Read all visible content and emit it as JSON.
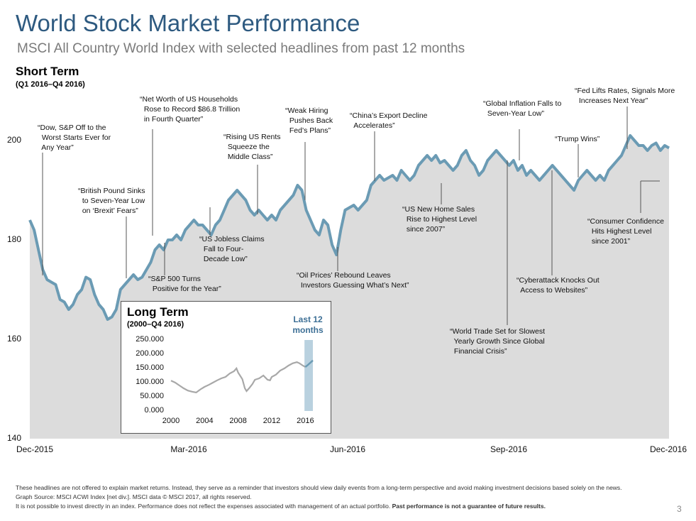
{
  "title": "World Stock Market Performance",
  "subtitle": "MSCI All Country World Index with selected headlines from past 12 months",
  "short_term": {
    "title": "Short Term",
    "period": "(Q1 2016–Q4 2016)"
  },
  "long_term": {
    "title": "Long Term",
    "period": "(2000–Q4 2016)",
    "highlight_label": [
      "Last 12",
      "months"
    ]
  },
  "colors": {
    "line": "#6b9bb4",
    "area": "#dcdcdc",
    "highlight": "#b9d1df",
    "long_line": "#a8a8a8",
    "title": "#2e5a80"
  },
  "footnotes": {
    "line1": "These headlines are not offered to explain market returns. Instead, they serve as a reminder that investors should view daily events from a long-term perspective and avoid making investment decisions based solely on the news.",
    "line2": "Graph Source: MSCI ACWI Index [net div.]. MSCI data © MSCI 2017, all rights reserved.",
    "line3a": "It is not possible to invest directly in an index. Performance does not reflect the expenses associated with management of an actual portfolio. ",
    "line3b": "Past performance is not a guarantee of future results."
  },
  "page_number": "3",
  "chart_data": [
    {
      "type": "area",
      "title": "Short Term",
      "ylim": [
        140,
        205
      ],
      "yticks": [
        140,
        160,
        180,
        200
      ],
      "x_ticks": [
        "Dec-2015",
        "Mar-2016",
        "Jun-2016",
        "Sep-2016",
        "Dec-2016"
      ],
      "series": [
        {
          "values": [
            184,
            182,
            178,
            174,
            172,
            171.5,
            171,
            168,
            167.5,
            166,
            167,
            169,
            170,
            172.5,
            172,
            169,
            167,
            166,
            164,
            164.5,
            166,
            170,
            171,
            172,
            173,
            172,
            172.5,
            174,
            175.5,
            178,
            179,
            178,
            180,
            180,
            181,
            180,
            182,
            183,
            184,
            183,
            183,
            182,
            181,
            183,
            184,
            186,
            188,
            189,
            190,
            189,
            188,
            186,
            185,
            186,
            185,
            184,
            185,
            184,
            186,
            187,
            188,
            189,
            191,
            190,
            186,
            184,
            182,
            181,
            184,
            183,
            179,
            177,
            182,
            186,
            186.5,
            187,
            186,
            187,
            188,
            191,
            192,
            193,
            192,
            192.5,
            193,
            192,
            194,
            193,
            192,
            193,
            195,
            196,
            197,
            196,
            197,
            195.5,
            196,
            195,
            194,
            195,
            197,
            198,
            196,
            195,
            193,
            194,
            196,
            197,
            198,
            197,
            196,
            195,
            196,
            194,
            195,
            193,
            194,
            193,
            192,
            193,
            194,
            195,
            194,
            193,
            192,
            191,
            190,
            192,
            193,
            194,
            193,
            192,
            193,
            192,
            194,
            195,
            196,
            197,
            199,
            201,
            200,
            199,
            199,
            198,
            199,
            199.5,
            198,
            199,
            198.5
          ]
        }
      ],
      "headlines": [
        "“Dow, S&P Off to the\n  Worst Starts Ever for\n  Any Year”",
        "“British Pound Sinks\n  to Seven-Year Low\n  on ‘Brexit’ Fears”",
        "“Net Worth of US Households\n  Rose to Record $86.8 Trillion\n  in Fourth Quarter”",
        "“S&P 500 Turns\n  Positive for the Year”",
        "“US Jobless Claims\n  Fall to Four-\n  Decade Low”",
        "“Rising US Rents\n  Squeeze the\n  Middle Class”",
        "“Weak Hiring\n  Pushes Back\n  Fed’s Plans”",
        "“Oil Prices’ Rebound Leaves\n  Investors Guessing What’s Next”",
        "“China’s Export Decline\n  Accelerates”",
        "“US New Home Sales\n  Rise to Highest Level\n  since 2007”",
        "“World Trade Set for Slowest\n  Yearly Growth Since Global\n  Financial Crisis”",
        "“Global Inflation Falls to\n  Seven-Year Low”",
        "“Cyberattack Knocks Out\n  Access to Websites”",
        "“Trump Wins”",
        "“Fed Lifts Rates, Signals More\n  Increases Next Year”",
        "“Consumer Confidence\n  Hits Highest Level\n  since 2001”"
      ]
    },
    {
      "type": "line",
      "title": "Long Term",
      "ylim": [
        0,
        250000
      ],
      "yticks": [
        "0.000",
        "50.000",
        "100.000",
        "150.000",
        "200.000",
        "250.000"
      ],
      "xticks": [
        2000,
        2004,
        2008,
        2012,
        2016
      ],
      "xlim": [
        2000,
        2016.9
      ],
      "highlight_range": [
        2015.9,
        2016.9
      ],
      "x": [
        2000,
        2000.5,
        2001,
        2001.5,
        2002,
        2002.5,
        2003,
        2003.5,
        2004,
        2004.5,
        2005,
        2005.5,
        2006,
        2006.5,
        2007,
        2007.5,
        2007.8,
        2008,
        2008.5,
        2008.8,
        2009,
        2009.3,
        2009.7,
        2010,
        2010.5,
        2011,
        2011.5,
        2011.8,
        2012,
        2012.5,
        2013,
        2013.5,
        2014,
        2014.5,
        2015,
        2015.3,
        2015.7,
        2016,
        2016.3,
        2016.6,
        2016.9
      ],
      "values": [
        107000,
        100000,
        90000,
        80000,
        72000,
        68000,
        65000,
        76000,
        85000,
        92000,
        100000,
        108000,
        115000,
        120000,
        132000,
        140000,
        150000,
        135000,
        112000,
        80000,
        70000,
        80000,
        95000,
        110000,
        115000,
        125000,
        110000,
        108000,
        120000,
        128000,
        142000,
        150000,
        160000,
        168000,
        172000,
        168000,
        160000,
        155000,
        162000,
        170000,
        178000
      ]
    }
  ]
}
